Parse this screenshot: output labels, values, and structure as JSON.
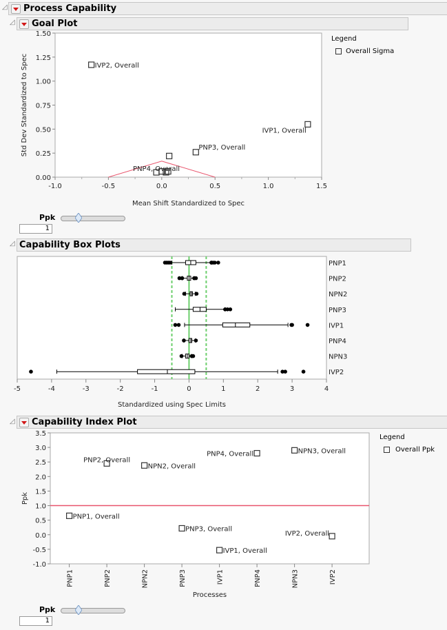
{
  "report": {
    "title": "Process Capability"
  },
  "goal_plot": {
    "title": "Goal Plot",
    "legend_title": "Legend",
    "legend_item": "Overall Sigma",
    "slider_label": "Ppk",
    "slider_value": "1",
    "chart_data": {
      "type": "scatter",
      "xlabel": "Mean Shift Standardized to Spec",
      "ylabel": "Std Dev Standardized to Spec",
      "xlim": [
        -1.0,
        1.5
      ],
      "ylim": [
        0,
        1.5
      ],
      "xticks": [
        "-1.0",
        "-0.5",
        "0.0",
        "0.5",
        "1.0",
        "1.5"
      ],
      "yticks": [
        "0.00",
        "0.25",
        "0.50",
        "0.75",
        "1.00",
        "1.25",
        "1.50"
      ],
      "ppk_boundary": [
        [
          -0.5,
          0
        ],
        [
          0,
          0.167
        ],
        [
          0.5,
          0
        ]
      ],
      "points": [
        {
          "label": "IVP2, Overall",
          "x": -0.66,
          "y": 1.17,
          "pos": "right"
        },
        {
          "label": "IVP1, Overall",
          "x": 1.37,
          "y": 0.55,
          "pos": "left-below"
        },
        {
          "label": "PNP3, Overall",
          "x": 0.32,
          "y": 0.26,
          "pos": "right-above"
        },
        {
          "label": "",
          "x": 0.07,
          "y": 0.22,
          "pos": "none"
        },
        {
          "label": "PNP4, Overall",
          "x": -0.05,
          "y": 0.05,
          "pos": "over"
        },
        {
          "label": "",
          "x": 0.0,
          "y": 0.06,
          "pos": "none"
        },
        {
          "label": "",
          "x": 0.04,
          "y": 0.05,
          "pos": "none"
        },
        {
          "label": "",
          "x": 0.06,
          "y": 0.06,
          "pos": "none"
        }
      ]
    }
  },
  "box_plots": {
    "title": "Capability Box Plots",
    "chart_data": {
      "type": "box",
      "xlabel": "Standardized using Spec Limits",
      "xlim": [
        -5,
        4
      ],
      "xticks": [
        "-5",
        "-4",
        "-3",
        "-2",
        "-1",
        "0",
        "1",
        "2",
        "3",
        "4"
      ],
      "spec_lines": [
        -0.5,
        0.5
      ],
      "target_line": 0,
      "series": [
        {
          "name": "PNP1",
          "wlo": -0.5,
          "q1": -0.1,
          "med": 0.05,
          "q3": 0.2,
          "whi": 0.65,
          "outliers": [
            -0.7,
            -0.65,
            -0.6,
            -0.55,
            0.65,
            0.7,
            0.75,
            0.85
          ]
        },
        {
          "name": "PNP2",
          "wlo": -0.2,
          "q1": -0.05,
          "med": 0.0,
          "q3": 0.05,
          "whi": 0.15,
          "outliers": [
            -0.28,
            -0.2,
            0.15,
            0.2
          ]
        },
        {
          "name": "NPN2",
          "wlo": -0.1,
          "q1": 0.03,
          "med": 0.07,
          "q3": 0.1,
          "whi": 0.18,
          "outliers": [
            -0.14,
            0.22
          ]
        },
        {
          "name": "PNP3",
          "wlo": -0.4,
          "q1": 0.12,
          "med": 0.32,
          "q3": 0.5,
          "whi": 1.05,
          "outliers": [
            1.05,
            1.12,
            1.2
          ]
        },
        {
          "name": "IVP1",
          "wlo": -0.13,
          "q1": 0.98,
          "med": 1.35,
          "q3": 1.77,
          "whi": 2.88,
          "outliers": [
            -0.4,
            -0.3,
            2.98,
            3.0,
            3.45
          ]
        },
        {
          "name": "PNP4",
          "wlo": -0.15,
          "q1": 0.0,
          "med": 0.05,
          "q3": 0.08,
          "whi": 0.18,
          "outliers": [
            -0.15,
            0.2
          ]
        },
        {
          "name": "NPN3",
          "wlo": -0.2,
          "q1": -0.1,
          "med": -0.05,
          "q3": 0.0,
          "whi": 0.08,
          "outliers": [
            -0.22,
            0.08,
            0.12
          ]
        },
        {
          "name": "IVP2",
          "wlo": -3.85,
          "q1": -1.5,
          "med": -0.63,
          "q3": 0.17,
          "whi": 2.58,
          "outliers": [
            -4.6,
            2.72,
            2.8,
            3.33
          ]
        }
      ]
    }
  },
  "index_plot": {
    "title": "Capability Index Plot",
    "legend_title": "Legend",
    "legend_item": "Overall Ppk",
    "slider_label": "Ppk",
    "slider_value": "1",
    "chart_data": {
      "type": "scatter",
      "xlabel": "Processes",
      "ylabel": "Ppk",
      "ylim": [
        -1.0,
        3.5
      ],
      "yticks": [
        "-1.0",
        "-0.5",
        "0.0",
        "0.5",
        "1.0",
        "1.5",
        "2.0",
        "2.5",
        "3.0",
        "3.5"
      ],
      "categories": [
        "PNP1",
        "PNP2",
        "NPN2",
        "PNP3",
        "IVP1",
        "PNP4",
        "NPN3",
        "IVP2"
      ],
      "reference_line": 1.0,
      "points": [
        {
          "label": "PNP1, Overall",
          "x": "PNP1",
          "y": 0.65,
          "pos": "right"
        },
        {
          "label": "PNP2, Overall",
          "x": "PNP2",
          "y": 2.45,
          "pos": "over"
        },
        {
          "label": "NPN2, Overall",
          "x": "NPN2",
          "y": 2.38,
          "pos": "right"
        },
        {
          "label": "PNP3, Overall",
          "x": "PNP3",
          "y": 0.22,
          "pos": "right"
        },
        {
          "label": "IVP1, Overall",
          "x": "IVP1",
          "y": -0.53,
          "pos": "right"
        },
        {
          "label": "PNP4, Overall",
          "x": "PNP4",
          "y": 2.8,
          "pos": "left"
        },
        {
          "label": "NPN3, Overall",
          "x": "NPN3",
          "y": 2.9,
          "pos": "right"
        },
        {
          "label": "IVP2, Overall",
          "x": "IVP2",
          "y": -0.05,
          "pos": "left-above"
        }
      ]
    }
  },
  "colors": {
    "spec_line": "#e8536b",
    "green_spec": "#6ccf6c",
    "header_bg": "#ececec",
    "dropdown_arrow": "#d21818"
  }
}
